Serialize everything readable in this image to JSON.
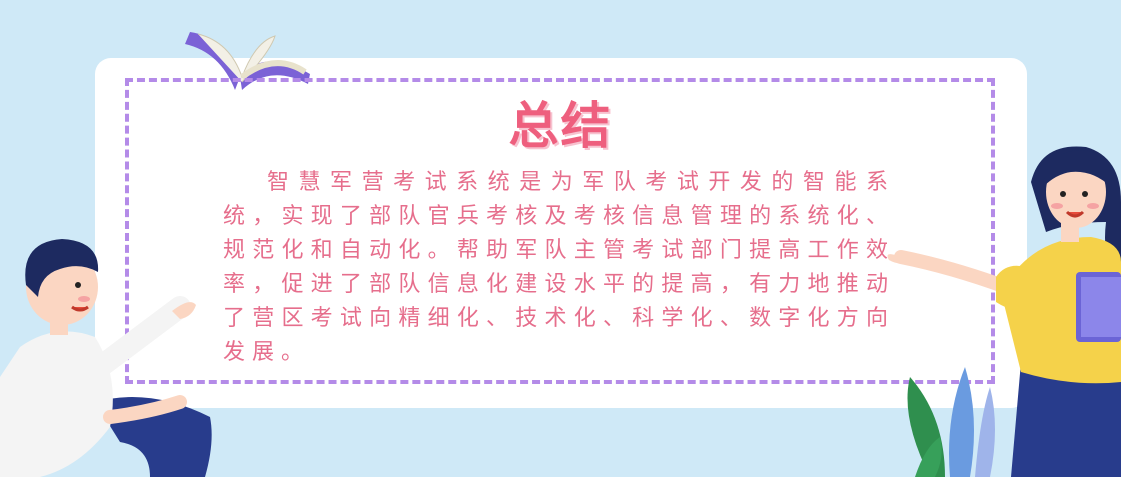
{
  "title": "总结",
  "paragraph": "智慧军营考试系统是为军队考试开发的智能系统，实现了部队官兵考核及考核信息管理的系统化、规范化和自动化。帮助军队主管考试部门提高工作效率，促进了部队信息化建设水平的提高，有力地推动了营区考试向精细化、技术化、科学化、数字化方向发展。",
  "colors": {
    "background": "#cfe9f7",
    "card": "#ffffff",
    "dash_border": "#b48be8",
    "title": "#ee5f7e",
    "text": "#e66e8c"
  },
  "icons": [
    "open-book-icon",
    "boy-illustration",
    "girl-illustration",
    "leaves-illustration"
  ]
}
